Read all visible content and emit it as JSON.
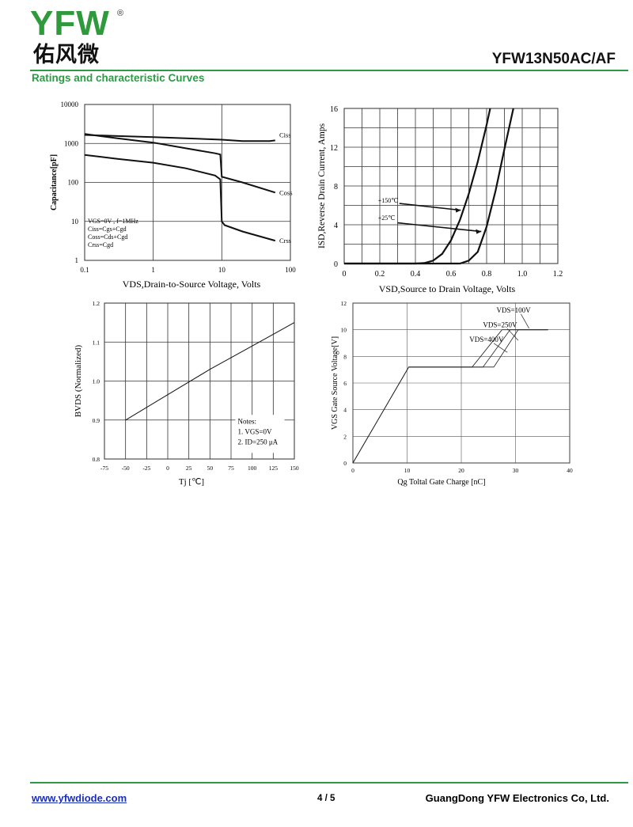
{
  "header": {
    "logo_letters": "YFW",
    "logo_cn": "佑风微",
    "registered": "®",
    "part_number": "YFW13N50AC/AF",
    "section_title": "Ratings and characteristic Curves",
    "colors": {
      "brand_green": "#2e9a48",
      "logo_green": "#2f9a3c"
    }
  },
  "footer": {
    "website": "www.yfwdiode.com",
    "page": "4 / 5",
    "company": "GuangDong YFW Electronics Co, Ltd."
  },
  "chart_data": [
    {
      "type": "line",
      "xlabel": "VDS,Drain-to-Source Voltage, Volts",
      "ylabel": "Capacitance[pF]",
      "xscale": "log",
      "yscale": "log",
      "xlim": [
        0.1,
        100
      ],
      "ylim": [
        1,
        10000
      ],
      "xticks": [
        "0.1",
        "1",
        "10",
        "100"
      ],
      "yticks": [
        "1",
        "10",
        "100",
        "1000",
        "10000"
      ],
      "grid": true,
      "notes": [
        "VGS=0V , f=1MHz",
        "Ciss=Cgs+Cgd",
        "Coss=Cds+Cgd",
        "Crss=Cgd"
      ],
      "series": [
        {
          "name": "Ciss",
          "x": [
            0.1,
            0.3,
            1,
            3,
            10,
            20,
            50,
            60
          ],
          "y": [
            1650,
            1550,
            1450,
            1350,
            1250,
            1150,
            1150,
            1200
          ]
        },
        {
          "name": "Coss",
          "x": [
            0.1,
            0.3,
            1,
            3,
            8,
            9.5,
            10,
            20,
            60
          ],
          "y": [
            1750,
            1350,
            1050,
            750,
            560,
            520,
            140,
            100,
            55
          ]
        },
        {
          "name": "Crss",
          "x": [
            0.1,
            0.3,
            1,
            3,
            8,
            9.5,
            10,
            11,
            20,
            60
          ],
          "y": [
            510,
            400,
            320,
            230,
            150,
            120,
            10,
            8,
            5.5,
            3.2
          ]
        }
      ]
    },
    {
      "type": "line",
      "xlabel": "VSD,Source to Drain Voltage, Volts",
      "ylabel": "ISD,Reverse Drain Current, Amps",
      "xlim": [
        0,
        1.2
      ],
      "ylim": [
        0,
        16
      ],
      "xticks": [
        "0",
        "0.2",
        "0.4",
        "0.6",
        "0.8",
        "1.0",
        "1.2"
      ],
      "yticks": [
        "0",
        "4",
        "8",
        "12",
        "16"
      ],
      "grid": true,
      "series": [
        {
          "name": "+150℃",
          "x": [
            0,
            0.4,
            0.45,
            0.5,
            0.55,
            0.6,
            0.65,
            0.7,
            0.75,
            0.8,
            0.82
          ],
          "y": [
            0,
            0,
            0.05,
            0.3,
            1.0,
            2.4,
            4.5,
            7.2,
            10.5,
            14.3,
            16
          ]
        },
        {
          "name": "+25℃",
          "x": [
            0,
            0.65,
            0.7,
            0.75,
            0.8,
            0.85,
            0.9,
            0.95
          ],
          "y": [
            0,
            0,
            0.3,
            1.2,
            3.8,
            7.5,
            11.8,
            16
          ]
        }
      ]
    },
    {
      "type": "line",
      "xlabel": "Tj [℃]",
      "ylabel": "BVDS (Normalized)",
      "xlim": [
        -75,
        150
      ],
      "ylim": [
        0.8,
        1.2
      ],
      "xticks": [
        "-75",
        "-50",
        "-25",
        "0",
        "25",
        "50",
        "75",
        "100",
        "125",
        "150"
      ],
      "yticks": [
        "0.8",
        "0.9",
        "1.0",
        "1.1",
        "1.2"
      ],
      "grid": true,
      "notes_title": "Notes:",
      "notes": [
        "1. VGS=0V",
        "2. ID=250 μA"
      ],
      "series": [
        {
          "x": [
            -50,
            0,
            50,
            100,
            125,
            150
          ],
          "y": [
            0.9,
            0.965,
            1.03,
            1.09,
            1.12,
            1.15
          ]
        }
      ]
    },
    {
      "type": "line",
      "xlabel": "Qg Toltal Gate Charge [nC]",
      "ylabel": "VGS Gate Source Voltage[V]",
      "xlim": [
        0,
        40
      ],
      "ylim": [
        0,
        12
      ],
      "xticks": [
        "0",
        "10",
        "20",
        "30",
        "40"
      ],
      "yticks": [
        "0",
        "2",
        "4",
        "6",
        "8",
        "10",
        "12"
      ],
      "grid": true,
      "series": [
        {
          "name": "VDS=100V",
          "x": [
            0,
            10.3,
            22,
            27.5,
            36
          ],
          "y": [
            0,
            7.2,
            7.2,
            10,
            10
          ]
        },
        {
          "name": "VDS=250V",
          "x": [
            0,
            10.3,
            24,
            29,
            36
          ],
          "y": [
            0,
            7.2,
            7.2,
            10,
            10
          ]
        },
        {
          "name": "VDS=400V",
          "x": [
            0,
            10.3,
            26,
            30.5,
            36
          ],
          "y": [
            0,
            7.2,
            7.2,
            10,
            10
          ]
        }
      ]
    }
  ]
}
